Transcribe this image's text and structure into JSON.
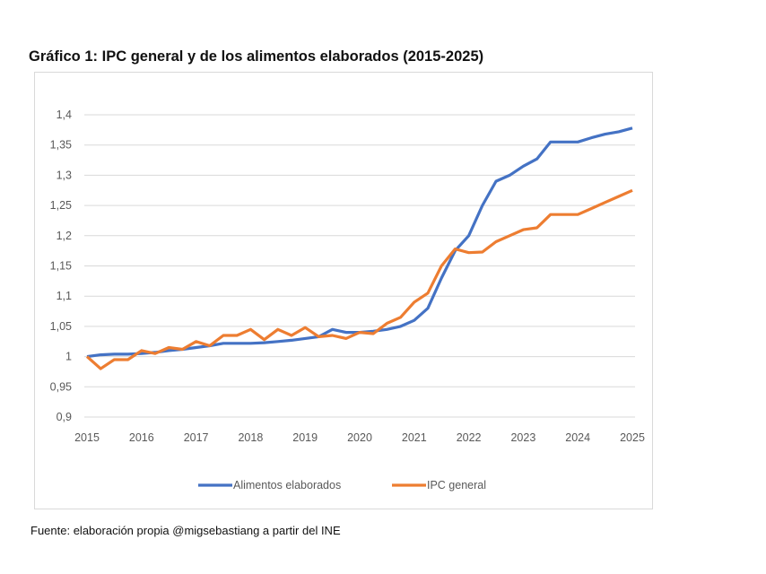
{
  "chart_data": {
    "type": "line",
    "title": "Gráfico 1: IPC general y de los alimentos elaborados (2015-2025)",
    "source": "Fuente: elaboración propia @migsebastiang a partir del INE",
    "xlabel": "",
    "ylabel": "",
    "xlim": [
      2015,
      2025
    ],
    "ylim": [
      0.9,
      1.4
    ],
    "x_ticks": [
      "2015",
      "2016",
      "2017",
      "2018",
      "2019",
      "2020",
      "2021",
      "2022",
      "2023",
      "2024",
      "2025"
    ],
    "y_ticks": [
      "0,9",
      "0,95",
      "1",
      "1,05",
      "1,1",
      "1,15",
      "1,2",
      "1,25",
      "1,3",
      "1,35",
      "1,4"
    ],
    "grid": true,
    "legend_position": "bottom",
    "x": [
      2015,
      2015.25,
      2015.5,
      2015.75,
      2016,
      2016.25,
      2016.5,
      2016.75,
      2017,
      2017.25,
      2017.5,
      2017.75,
      2018,
      2018.25,
      2018.5,
      2018.75,
      2019,
      2019.25,
      2019.5,
      2019.75,
      2020,
      2020.25,
      2020.5,
      2020.75,
      2021,
      2021.25,
      2021.5,
      2021.75,
      2022,
      2022.25,
      2022.5,
      2022.75,
      2023,
      2023.25,
      2023.5,
      2023.75,
      2024,
      2024.25,
      2024.5,
      2024.75,
      2025
    ],
    "series": [
      {
        "name": "Alimentos elaborados",
        "color": "#4472c4",
        "values": [
          1.0,
          1.003,
          1.004,
          1.004,
          1.005,
          1.007,
          1.01,
          1.012,
          1.015,
          1.018,
          1.022,
          1.022,
          1.022,
          1.023,
          1.025,
          1.027,
          1.03,
          1.033,
          1.045,
          1.04,
          1.04,
          1.042,
          1.045,
          1.05,
          1.06,
          1.08,
          1.13,
          1.175,
          1.2,
          1.25,
          1.29,
          1.3,
          1.315,
          1.327,
          1.355,
          1.355,
          1.355,
          1.362,
          1.368,
          1.372,
          1.378
        ]
      },
      {
        "name": "IPC general",
        "color": "#ed7d31",
        "values": [
          1.0,
          0.98,
          0.995,
          0.995,
          1.01,
          1.005,
          1.015,
          1.012,
          1.025,
          1.018,
          1.035,
          1.035,
          1.045,
          1.028,
          1.045,
          1.035,
          1.048,
          1.033,
          1.035,
          1.03,
          1.04,
          1.038,
          1.055,
          1.065,
          1.09,
          1.105,
          1.15,
          1.178,
          1.172,
          1.173,
          1.19,
          1.2,
          1.21,
          1.213,
          1.235,
          1.235,
          1.235,
          1.245,
          1.255,
          1.265,
          1.275
        ]
      }
    ]
  }
}
